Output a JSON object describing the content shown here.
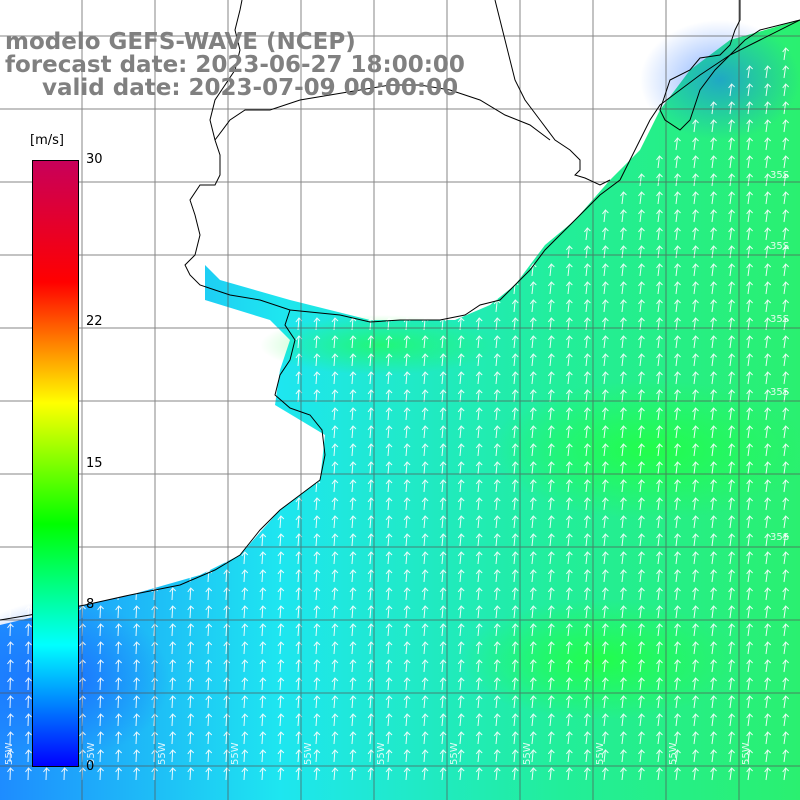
{
  "title": {
    "line1": "modelo GEFS-WAVE (NCEP)",
    "line2": "forecast date: 2023-06-27 18:00:00",
    "line3": "valid date: 2023-07-09 00:00:00"
  },
  "colorbar": {
    "unit": "[m/s]",
    "ticks": [
      {
        "label": "30",
        "value": 30
      },
      {
        "label": "22",
        "value": 22
      },
      {
        "label": "15",
        "value": 15
      },
      {
        "label": "8",
        "value": 8
      },
      {
        "label": "0",
        "value": 0
      }
    ],
    "min": 0,
    "max": 30,
    "colors": [
      "#0000ff",
      "#00ffff",
      "#00ff00",
      "#ffff00",
      "#ff0000",
      "#c8005a"
    ]
  },
  "map_labels": {
    "lat": [
      "35S",
      "35S",
      "35S",
      "35S",
      "35S"
    ],
    "lon": [
      "55W",
      "55W",
      "55W",
      "55W",
      "55W",
      "55W",
      "55W",
      "55W",
      "55W",
      "55W",
      "55W"
    ]
  },
  "colors": {
    "land": "#ffffff",
    "grid": "#444444",
    "coast": "#000000",
    "title": "#808080"
  }
}
